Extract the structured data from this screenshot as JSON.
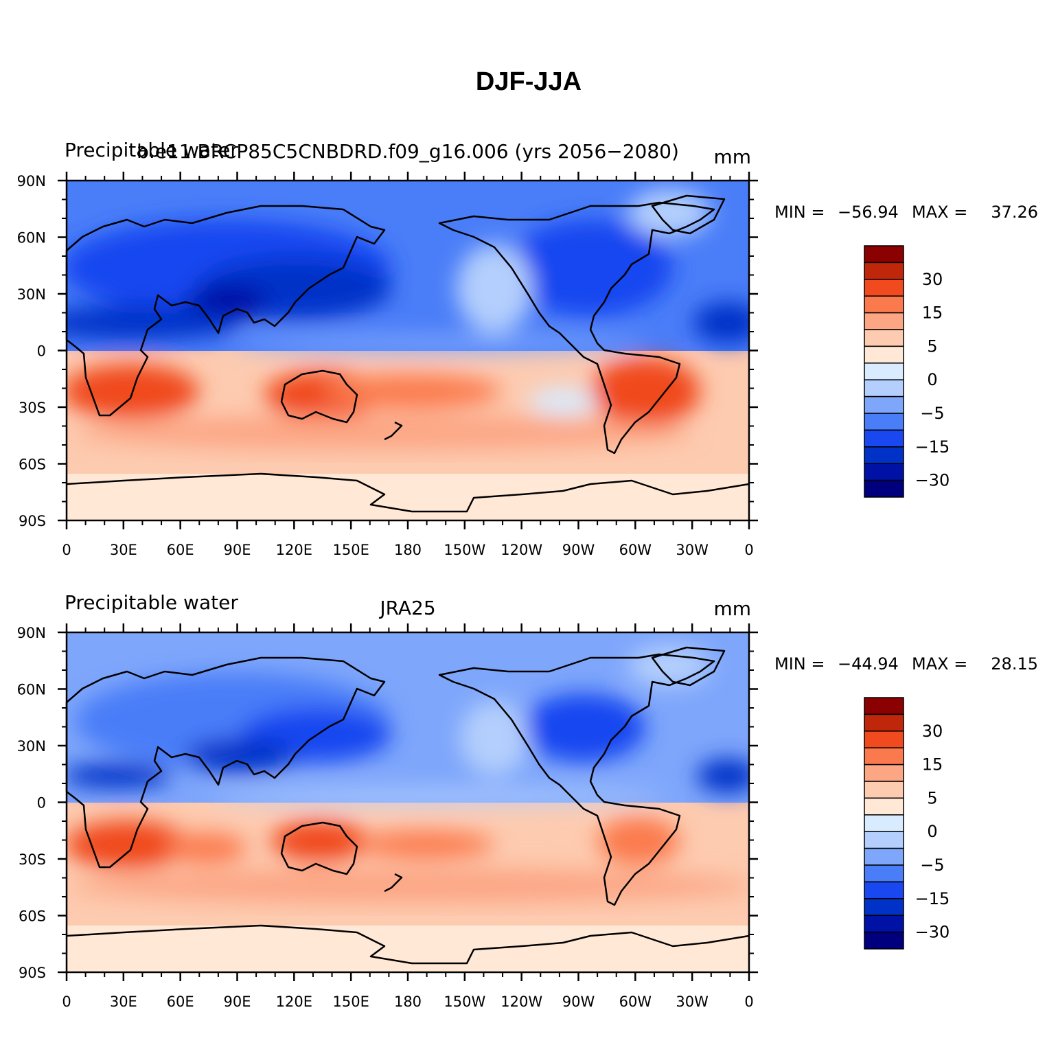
{
  "figure": {
    "title": "DJF-JJA"
  },
  "palette": [
    "#00007f",
    "#0011a5",
    "#0032c8",
    "#1947f0",
    "#4a7df8",
    "#7ea6fb",
    "#b4cffd",
    "#d8ebff",
    "#ffe8d6",
    "#fdcbb0",
    "#fca684",
    "#fb7a4d",
    "#f04a1e",
    "#c0260a",
    "#8b0000"
  ],
  "colorbar_labels": [
    "30",
    "15",
    "5",
    "0",
    "−5",
    "−15",
    "−30"
  ],
  "x_ticks": [
    "0",
    "30E",
    "60E",
    "90E",
    "120E",
    "150E",
    "180",
    "150W",
    "120W",
    "90W",
    "60W",
    "30W",
    "0"
  ],
  "y_ticks": [
    "90N",
    "60N",
    "30N",
    "0",
    "30S",
    "60S",
    "90S"
  ],
  "panels": [
    {
      "left_title": "Precipitable water",
      "center_title": "b.e11.BRCP85C5CNBDRD.f09_g16.006 (yrs 2056−2080)",
      "units": "mm",
      "stats": {
        "min_label": "MIN =",
        "min": "−56.94",
        "max_label": "MAX =",
        "max": "37.26"
      }
    },
    {
      "left_title": "Precipitable water",
      "center_title": "JRA25",
      "units": "mm",
      "stats": {
        "min_label": "MIN =",
        "min": "−44.94",
        "max_label": "MAX =",
        "max": "28.15"
      }
    }
  ]
}
